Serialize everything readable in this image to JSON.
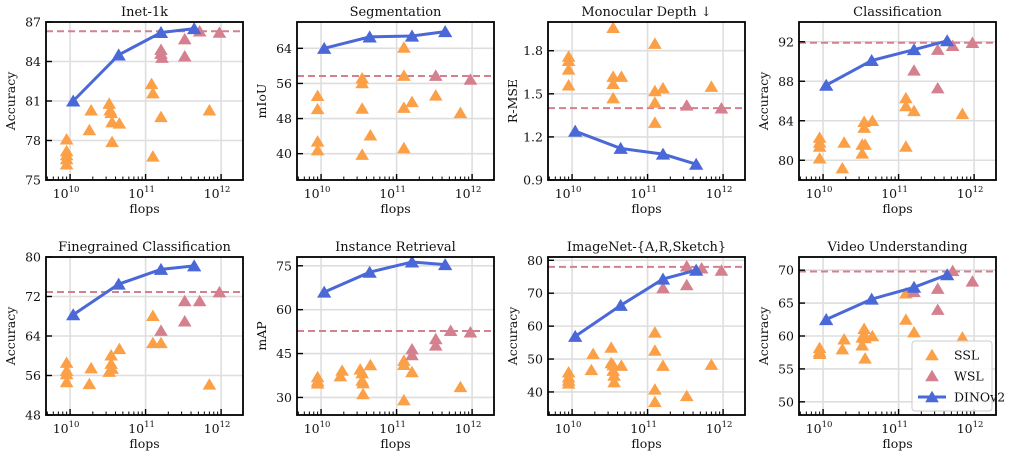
{
  "chart_data": [
    {
      "type": "scatter",
      "title": "Inet-1k",
      "xlabel": "flops",
      "ylabel": "Accuracy",
      "xscale": "log",
      "xlim": [
        4800000000.0,
        1950000000000.0
      ],
      "ylim": [
        75,
        87
      ],
      "yticks": [
        75,
        78,
        81,
        84,
        87
      ],
      "xticks": [
        "10^10",
        "10^11",
        "10^12"
      ],
      "grid": true,
      "wsl_best": 86.3,
      "series": [
        {
          "name": "SSL",
          "x": [
            9000000000.0,
            9000000000.0,
            9000000000.0,
            9000000000.0,
            9000000000.0,
            18000000000.0,
            19000000000.0,
            33000000000.0,
            34000000000.0,
            35000000000.0,
            36000000000.0,
            36000000000.0,
            45000000000.0,
            120000000000.0,
            125000000000.0,
            125000000000.0,
            160000000000.0,
            700000000000.0
          ],
          "y": [
            78.1,
            77.2,
            76.9,
            76.6,
            76.2,
            78.8,
            80.3,
            80.8,
            80.3,
            80.1,
            79.4,
            77.9,
            79.3,
            82.3,
            81.6,
            76.8,
            79.8,
            80.3
          ]
        },
        {
          "name": "WSL",
          "x": [
            160000000000.0,
            160000000000.0,
            165000000000.0,
            330000000000.0,
            330000000000.0,
            520000000000.0,
            950000000000.0
          ],
          "y": [
            84.9,
            84.6,
            84.3,
            85.7,
            84.4,
            86.3,
            86.2
          ]
        },
        {
          "name": "DINOv2",
          "x": [
            11000000000.0,
            44000000000.0,
            160000000000.0,
            440000000000.0
          ],
          "y": [
            81.0,
            84.5,
            86.2,
            86.5
          ]
        }
      ]
    },
    {
      "type": "scatter",
      "title": "Segmentation",
      "xlabel": "flops",
      "ylabel": "mIoU",
      "xscale": "log",
      "xlim": [
        4800000000.0,
        1950000000000.0
      ],
      "ylim": [
        34,
        70
      ],
      "yticks": [
        40,
        48,
        56,
        64
      ],
      "xticks": [
        "10^10",
        "10^11",
        "10^12"
      ],
      "grid": true,
      "wsl_best": 57.7,
      "series": [
        {
          "name": "SSL",
          "x": [
            9000000000.0,
            9000000000.0,
            9000000000.0,
            9000000000.0,
            35000000000.0,
            35000000000.0,
            35000000000.0,
            35000000000.0,
            45000000000.0,
            125000000000.0,
            125000000000.0,
            125000000000.0,
            125000000000.0,
            160000000000.0,
            330000000000.0,
            700000000000.0
          ],
          "y": [
            53.2,
            50.2,
            42.8,
            40.8,
            57.2,
            56.1,
            50.3,
            39.8,
            44.2,
            64.2,
            57.8,
            50.5,
            41.3,
            51.8,
            53.3,
            49.3
          ]
        },
        {
          "name": "WSL",
          "x": [
            330000000000.0,
            950000000000.0
          ],
          "y": [
            57.8,
            56.9
          ]
        },
        {
          "name": "DINOv2",
          "x": [
            11000000000.0,
            44000000000.0,
            160000000000.0,
            440000000000.0
          ],
          "y": [
            64.0,
            66.6,
            66.8,
            67.8
          ]
        }
      ]
    },
    {
      "type": "scatter",
      "title": "Monocular Depth ↓",
      "xlabel": "flops",
      "ylabel": "R-MSE",
      "xscale": "log",
      "xlim": [
        4800000000.0,
        1950000000000.0
      ],
      "ylim": [
        0.9,
        2.0
      ],
      "yticks": [
        0.9,
        1.2,
        1.5,
        1.8
      ],
      "xticks": [
        "10^10",
        "10^11",
        "10^12"
      ],
      "grid": true,
      "wsl_best": 1.4,
      "series": [
        {
          "name": "SSL",
          "x": [
            9000000000.0,
            9000000000.0,
            9000000000.0,
            9000000000.0,
            35000000000.0,
            35000000000.0,
            35000000000.0,
            35000000000.0,
            45000000000.0,
            125000000000.0,
            125000000000.0,
            125000000000.0,
            125000000000.0,
            160000000000.0,
            700000000000.0
          ],
          "y": [
            1.76,
            1.73,
            1.67,
            1.56,
            1.96,
            1.62,
            1.57,
            1.47,
            1.62,
            1.85,
            1.52,
            1.44,
            1.3,
            1.54,
            1.55
          ]
        },
        {
          "name": "WSL",
          "x": [
            330000000000.0,
            950000000000.0
          ],
          "y": [
            1.42,
            1.4
          ]
        },
        {
          "name": "DINOv2",
          "x": [
            11000000000.0,
            44000000000.0,
            160000000000.0,
            440000000000.0
          ],
          "y": [
            1.24,
            1.12,
            1.08,
            1.01
          ]
        }
      ]
    },
    {
      "type": "scatter",
      "title": "Classification",
      "xlabel": "flops",
      "ylabel": "Accuracy",
      "xscale": "log",
      "xlim": [
        4800000000.0,
        1950000000000.0
      ],
      "ylim": [
        78,
        94
      ],
      "yticks": [
        80,
        84,
        88,
        92
      ],
      "xticks": [
        "10^10",
        "10^11",
        "10^12"
      ],
      "grid": true,
      "wsl_best": 91.9,
      "series": [
        {
          "name": "SSL",
          "x": [
            9000000000.0,
            9000000000.0,
            9000000000.0,
            9000000000.0,
            18000000000.0,
            19000000000.0,
            33000000000.0,
            33000000000.0,
            35000000000.0,
            35000000000.0,
            36000000000.0,
            45000000000.0,
            125000000000.0,
            125000000000.0,
            125000000000.0,
            160000000000.0,
            700000000000.0
          ],
          "y": [
            82.3,
            81.8,
            81.4,
            80.2,
            79.2,
            81.8,
            81.6,
            80.7,
            83.9,
            83.3,
            81.6,
            84.0,
            86.3,
            85.5,
            81.4,
            85.0,
            84.7
          ]
        },
        {
          "name": "WSL",
          "x": [
            160000000000.0,
            330000000000.0,
            330000000000.0,
            520000000000.0,
            950000000000.0
          ],
          "y": [
            89.1,
            91.2,
            87.3,
            91.6,
            91.9
          ]
        },
        {
          "name": "DINOv2",
          "x": [
            11000000000.0,
            44000000000.0,
            160000000000.0,
            440000000000.0
          ],
          "y": [
            87.6,
            90.1,
            91.2,
            92.1
          ]
        }
      ]
    },
    {
      "type": "scatter",
      "title": "Finegrained Classification",
      "xlabel": "flops",
      "ylabel": "Accuracy",
      "xscale": "log",
      "xlim": [
        4800000000.0,
        1950000000000.0
      ],
      "ylim": [
        48,
        80
      ],
      "yticks": [
        48,
        56,
        64,
        72,
        80
      ],
      "xticks": [
        "10^10",
        "10^11",
        "10^12"
      ],
      "grid": true,
      "wsl_best": 72.9,
      "series": [
        {
          "name": "SSL",
          "x": [
            9000000000.0,
            9000000000.0,
            9000000000.0,
            9000000000.0,
            18000000000.0,
            19000000000.0,
            33000000000.0,
            35000000000.0,
            35000000000.0,
            36000000000.0,
            45000000000.0,
            125000000000.0,
            125000000000.0,
            160000000000.0,
            700000000000.0
          ],
          "y": [
            58.6,
            57.0,
            56.3,
            54.7,
            54.3,
            57.5,
            56.8,
            60.1,
            58.4,
            57.4,
            61.4,
            68.1,
            62.6,
            62.6,
            54.2
          ]
        },
        {
          "name": "WSL",
          "x": [
            160000000000.0,
            330000000000.0,
            330000000000.0,
            520000000000.0,
            950000000000.0
          ],
          "y": [
            65.1,
            71.1,
            67.0,
            71.1,
            72.9
          ]
        },
        {
          "name": "DINOv2",
          "x": [
            11000000000.0,
            44000000000.0,
            160000000000.0,
            440000000000.0
          ],
          "y": [
            68.3,
            74.5,
            77.5,
            78.2
          ]
        }
      ]
    },
    {
      "type": "scatter",
      "title": "Instance Retrieval",
      "xlabel": "flops",
      "ylabel": "mAP",
      "xscale": "log",
      "xlim": [
        4800000000.0,
        1950000000000.0
      ],
      "ylim": [
        24,
        78
      ],
      "yticks": [
        30,
        45,
        60,
        75
      ],
      "xticks": [
        "10^10",
        "10^11",
        "10^12"
      ],
      "grid": true,
      "wsl_best": 52.7,
      "series": [
        {
          "name": "SSL",
          "x": [
            9000000000.0,
            9000000000.0,
            9000000000.0,
            18000000000.0,
            19000000000.0,
            33000000000.0,
            35000000000.0,
            35000000000.0,
            36000000000.0,
            36000000000.0,
            45000000000.0,
            125000000000.0,
            125000000000.0,
            125000000000.0,
            160000000000.0,
            700000000000.0
          ],
          "y": [
            37.0,
            35.6,
            34.8,
            37.3,
            39.2,
            39.6,
            38.3,
            35.8,
            34.9,
            31.2,
            41.1,
            42.6,
            41.2,
            29.1,
            38.7,
            33.6
          ]
        },
        {
          "name": "WSL",
          "x": [
            160000000000.0,
            160000000000.0,
            330000000000.0,
            330000000000.0,
            520000000000.0,
            950000000000.0
          ],
          "y": [
            46.5,
            44.5,
            50.0,
            47.8,
            52.8,
            52.3
          ]
        },
        {
          "name": "DINOv2",
          "x": [
            11000000000.0,
            44000000000.0,
            160000000000.0,
            440000000000.0
          ],
          "y": [
            66.0,
            72.8,
            76.3,
            75.4
          ]
        }
      ]
    },
    {
      "type": "scatter",
      "title": "ImageNet-{A,R,Sketch}",
      "xlabel": "flops",
      "ylabel": "Accuracy",
      "xscale": "log",
      "xlim": [
        4800000000.0,
        1950000000000.0
      ],
      "ylim": [
        33,
        81
      ],
      "yticks": [
        40,
        50,
        60,
        70,
        80
      ],
      "xticks": [
        "10^10",
        "10^11",
        "10^12"
      ],
      "grid": true,
      "wsl_best": 78.0,
      "series": [
        {
          "name": "SSL",
          "x": [
            9000000000.0,
            9000000000.0,
            9000000000.0,
            9000000000.0,
            18000000000.0,
            19000000000.0,
            33000000000.0,
            33000000000.0,
            35000000000.0,
            35000000000.0,
            36000000000.0,
            36000000000.0,
            45000000000.0,
            125000000000.0,
            125000000000.0,
            125000000000.0,
            125000000000.0,
            160000000000.0,
            330000000000.0,
            700000000000.0
          ],
          "y": [
            46.0,
            44.5,
            43.5,
            42.6,
            46.7,
            51.6,
            53.5,
            48.8,
            48.2,
            46.5,
            45.0,
            43.0,
            48.0,
            58.1,
            52.6,
            40.8,
            37.0,
            48.0,
            38.8,
            48.3
          ]
        },
        {
          "name": "WSL",
          "x": [
            160000000000.0,
            330000000000.0,
            330000000000.0,
            520000000000.0,
            950000000000.0
          ],
          "y": [
            71.6,
            78.2,
            72.5,
            77.6,
            76.9
          ]
        },
        {
          "name": "DINOv2",
          "x": [
            11000000000.0,
            44000000000.0,
            160000000000.0,
            440000000000.0
          ],
          "y": [
            56.9,
            66.3,
            74.3,
            77.0
          ]
        }
      ]
    },
    {
      "type": "scatter",
      "title": "Video Understanding",
      "xlabel": "flops",
      "ylabel": "Accuracy",
      "xscale": "log",
      "xlim": [
        4800000000.0,
        1950000000000.0
      ],
      "ylim": [
        48,
        72
      ],
      "yticks": [
        50,
        55,
        60,
        65,
        70
      ],
      "xticks": [
        "10^10",
        "10^11",
        "10^12"
      ],
      "grid": true,
      "wsl_best": 69.8,
      "legend": {
        "placement": "lower-right",
        "entries": [
          "SSL",
          "WSL",
          "DINOv2"
        ]
      },
      "series": [
        {
          "name": "SSL",
          "x": [
            9000000000.0,
            9000000000.0,
            9000000000.0,
            18000000000.0,
            19000000000.0,
            33000000000.0,
            33000000000.0,
            35000000000.0,
            35000000000.0,
            36000000000.0,
            36000000000.0,
            45000000000.0,
            125000000000.0,
            125000000000.0,
            160000000000.0,
            700000000000.0
          ],
          "y": [
            58.2,
            57.6,
            57.3,
            58.0,
            59.5,
            59.8,
            58.6,
            61.1,
            60.3,
            59.7,
            56.6,
            60.0,
            66.5,
            62.5,
            60.6,
            59.8
          ]
        },
        {
          "name": "WSL",
          "x": [
            160000000000.0,
            330000000000.0,
            330000000000.0,
            520000000000.0,
            950000000000.0
          ],
          "y": [
            66.7,
            67.2,
            64.0,
            69.9,
            68.3
          ]
        },
        {
          "name": "DINOv2",
          "x": [
            11000000000.0,
            44000000000.0,
            160000000000.0,
            440000000000.0
          ],
          "y": [
            62.5,
            65.6,
            67.4,
            69.3
          ]
        }
      ]
    }
  ],
  "legend": {
    "entries": [
      {
        "name": "SSL",
        "label": "SSL",
        "marker": "triangle-icon"
      },
      {
        "name": "WSL",
        "label": "WSL",
        "marker": "triangle-icon"
      },
      {
        "name": "DINOv2",
        "label": "DINOv2",
        "marker": "line-triangle-icon"
      }
    ]
  },
  "colors": {
    "SSL": "#fba047",
    "WSL": "#d4808f",
    "DINOv2": "#4a68d8",
    "wsl_line": "#d4808f",
    "grid": "#dedede",
    "axes": "#000000"
  }
}
